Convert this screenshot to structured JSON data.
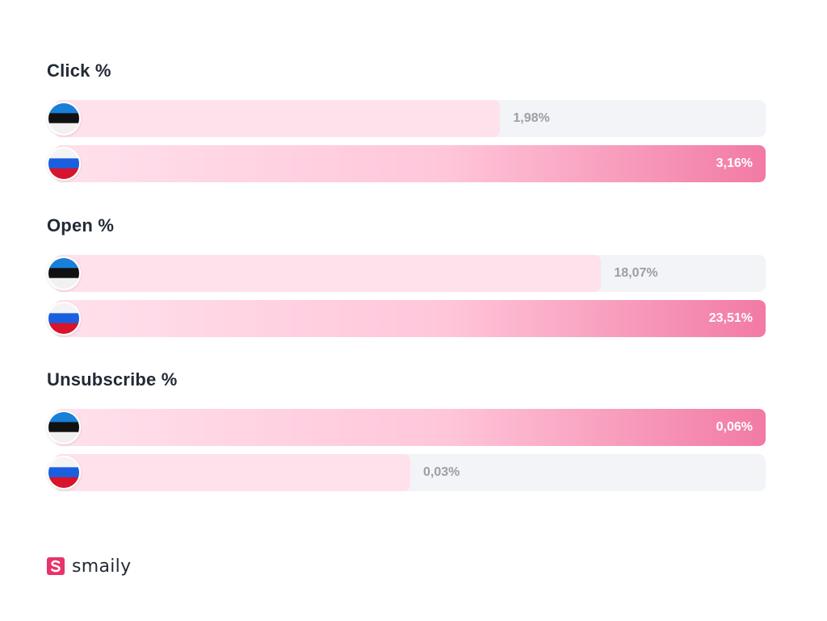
{
  "chart_data": {
    "type": "bar",
    "groups": [
      {
        "title": "Click %",
        "rows": [
          {
            "country": "Estonia",
            "flag": "estonia-flag-icon",
            "value": 1.98,
            "label": "1,98%"
          },
          {
            "country": "Russia",
            "flag": "russia-flag-icon",
            "value": 3.16,
            "label": "3,16%"
          }
        ]
      },
      {
        "title": "Open %",
        "rows": [
          {
            "country": "Estonia",
            "flag": "estonia-flag-icon",
            "value": 18.07,
            "label": "18,07%"
          },
          {
            "country": "Russia",
            "flag": "russia-flag-icon",
            "value": 23.51,
            "label": "23,51%"
          }
        ]
      },
      {
        "title": "Unsubscribe %",
        "rows": [
          {
            "country": "Estonia",
            "flag": "estonia-flag-icon",
            "value": 0.06,
            "label": "0,06%"
          },
          {
            "country": "Russia",
            "flag": "russia-flag-icon",
            "value": 0.03,
            "label": "0,03%"
          }
        ]
      }
    ]
  },
  "colors": {
    "bar_low": "#ffe1ec",
    "bar_high_end": "#f27aa4",
    "track": "#f2f4f7",
    "title": "#232a36",
    "brand": "#e8336b"
  },
  "logo": {
    "text": "smaily",
    "icon": "smaily-logo-icon"
  }
}
